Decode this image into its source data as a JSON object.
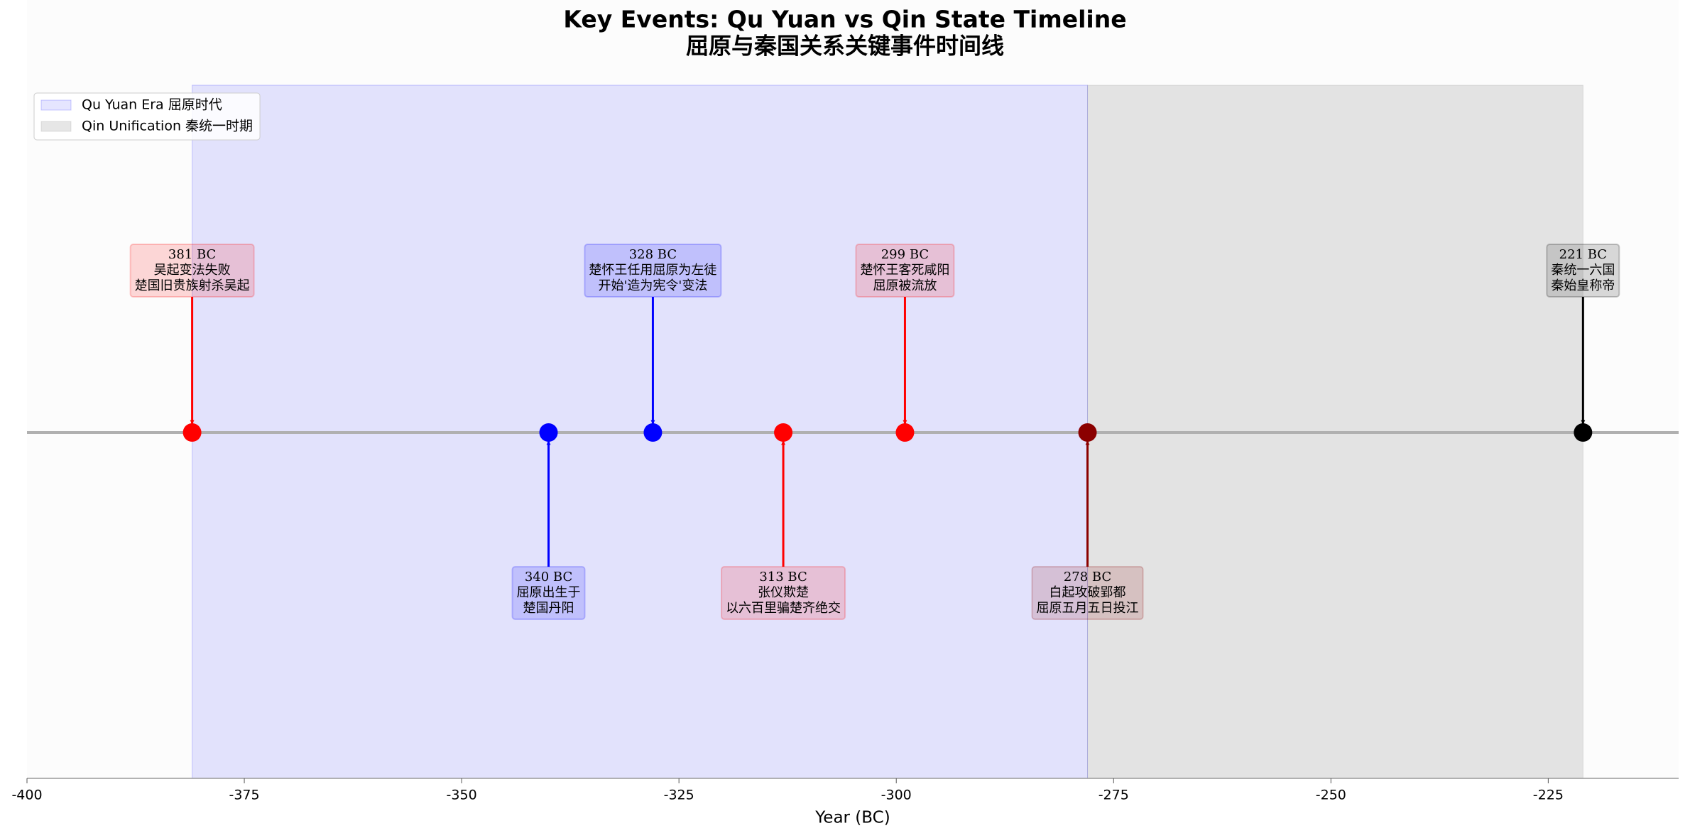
{
  "chart_data": {
    "type": "timeline",
    "title": "Key Events: Qu Yuan vs Qin State Timeline",
    "subtitle": "屈原与秦国关系关键事件时间线",
    "x_label": "Year (BC)",
    "xlim": [
      -400,
      -210
    ],
    "xticks": [
      -400,
      -375,
      -350,
      -325,
      -300,
      -275,
      -250,
      -225
    ],
    "legend": "upper left",
    "spans": [
      {
        "name": "Qu Yuan Era 屈原时代",
        "start": -381,
        "end": -278,
        "color": "#0000ff"
      },
      {
        "name": "Qin Unification 秦统一时期",
        "start": -278,
        "end": -221,
        "color": "#808080"
      }
    ],
    "events": [
      {
        "x": -381,
        "labels": [
          "381 BC",
          "吴起变法失败",
          "楚国旧贵族射杀吴起"
        ],
        "color": "#ff0000",
        "side": "above"
      },
      {
        "x": -340,
        "labels": [
          "340 BC",
          "屈原出生于",
          "楚国丹阳"
        ],
        "color": "#0000ff",
        "side": "below"
      },
      {
        "x": -328,
        "labels": [
          "328 BC",
          "楚怀王任用屈原为左徒",
          "开始'造为宪令'变法"
        ],
        "color": "#0000ff",
        "side": "above"
      },
      {
        "x": -313,
        "labels": [
          "313 BC",
          "张仪欺楚",
          "以六百里骗楚齐绝交"
        ],
        "color": "#ff0000",
        "side": "below"
      },
      {
        "x": -299,
        "labels": [
          "299 BC",
          "楚怀王客死咸阳",
          "屈原被流放"
        ],
        "color": "#ff0000",
        "side": "above"
      },
      {
        "x": -278,
        "labels": [
          "278 BC",
          "白起攻破郢都",
          "屈原五月五日投江"
        ],
        "color": "#8b0000",
        "side": "below"
      },
      {
        "x": -221,
        "labels": [
          "221 BC",
          "秦统一六国",
          "秦始皇称帝"
        ],
        "color": "#000000",
        "side": "above"
      }
    ]
  }
}
